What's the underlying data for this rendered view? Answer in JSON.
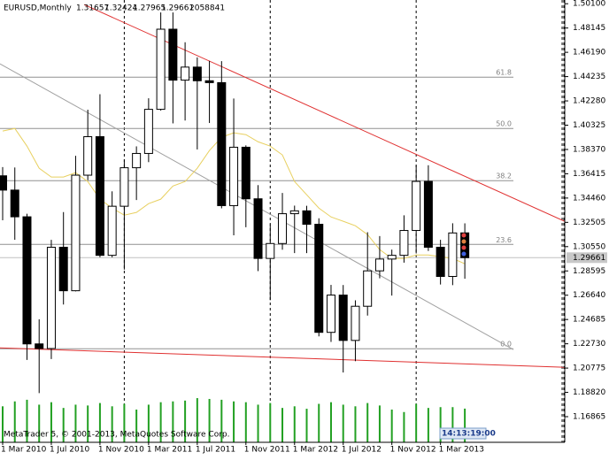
{
  "chart_data": {
    "type": "candlestick",
    "symbol": "EURUSD,Monthly",
    "volume": 2058841,
    "footer": "MetaTrader 5, © 2001-2013, MetaQuotes Software Corp.",
    "countdown": "14:13:19:00",
    "categories": [
      "1 Mar 2010",
      null,
      null,
      null,
      "1 Jul 2010",
      null,
      null,
      null,
      "1 Nov 2010",
      null,
      null,
      null,
      "1 Mar 2011",
      null,
      null,
      null,
      "1 Jul 2011",
      null,
      null,
      null,
      "1 Nov 2011",
      null,
      null,
      null,
      "1 Mar 2012",
      null,
      null,
      null,
      "1 Jul 2012",
      null,
      null,
      null,
      "1 Nov 2012",
      null,
      null,
      null,
      "1 Mar 2013",
      null,
      null
    ],
    "open": [
      1.3625,
      1.351,
      1.3295,
      1.2272,
      1.2235,
      1.305,
      1.27,
      1.363,
      1.394,
      1.2985,
      1.338,
      1.369,
      1.3805,
      1.416,
      1.4805,
      1.4395,
      1.45,
      1.439,
      1.4375,
      1.3385,
      1.3855,
      1.344,
      1.296,
      1.308,
      1.332,
      1.3343,
      1.3235,
      1.2365,
      1.2665,
      1.23,
      1.2575,
      1.286,
      1.2955,
      1.2985,
      1.3185,
      1.358,
      1.305,
      1.2815,
      1.31657
    ],
    "high": [
      1.3695,
      1.3692,
      1.332,
      1.247,
      1.311,
      1.3333,
      1.3786,
      1.4157,
      1.4282,
      1.35,
      1.3755,
      1.3862,
      1.4249,
      1.494,
      1.494,
      1.47,
      1.4578,
      1.455,
      1.4548,
      1.4247,
      1.387,
      1.355,
      1.3235,
      1.3487,
      1.3385,
      1.3384,
      1.3283,
      1.2747,
      1.2746,
      1.2623,
      1.3171,
      1.314,
      1.3031,
      1.3307,
      1.3711,
      1.371,
      1.311,
      1.3243,
      1.32424
    ],
    "low": [
      1.3267,
      1.311,
      1.2143,
      1.1876,
      1.215,
      1.2589,
      1.2695,
      1.359,
      1.297,
      1.2969,
      1.287,
      1.343,
      1.3735,
      1.415,
      1.4047,
      1.407,
      1.3837,
      1.405,
      1.3363,
      1.3146,
      1.3211,
      1.2858,
      1.2624,
      1.303,
      1.3003,
      1.3003,
      1.2333,
      1.2288,
      1.2042,
      1.2133,
      1.25,
      1.28,
      1.2661,
      1.2926,
      1.3,
      1.302,
      1.275,
      1.2745,
      1.27965
    ],
    "close": [
      1.351,
      1.3295,
      1.2272,
      1.2235,
      1.305,
      1.27,
      1.363,
      1.394,
      1.2985,
      1.338,
      1.369,
      1.3805,
      1.416,
      1.4805,
      1.4395,
      1.45,
      1.439,
      1.4375,
      1.3385,
      1.3855,
      1.344,
      1.296,
      1.308,
      1.332,
      1.3343,
      1.3235,
      1.2365,
      1.2665,
      1.23,
      1.2575,
      1.286,
      1.2955,
      1.2985,
      1.3185,
      1.358,
      1.305,
      1.2815,
      1.3165,
      1.29661
    ],
    "volumes": [
      2200000,
      2500000,
      2600000,
      2300000,
      2450000,
      2100000,
      2300000,
      2250000,
      2400000,
      2200000,
      2350000,
      2000000,
      2300000,
      2450000,
      2500000,
      2550000,
      2700000,
      2650000,
      2600000,
      2500000,
      2450000,
      2300000,
      2400000,
      2100000,
      2200000,
      2050000,
      2350000,
      2450000,
      2300000,
      2200000,
      2400000,
      2250000,
      2000000,
      1850000,
      2350000,
      2100000,
      2150000,
      2150000,
      2058841
    ],
    "moving_average": {
      "color": "#e8d060",
      "values": [
        1.3985,
        1.4006,
        1.3864,
        1.3686,
        1.3615,
        1.3615,
        1.365,
        1.3579,
        1.3437,
        1.3365,
        1.3308,
        1.333,
        1.3401,
        1.3437,
        1.3543,
        1.3579,
        1.3686,
        1.3828,
        1.3935,
        1.3971,
        1.3956,
        1.3899,
        1.3864,
        1.3793,
        1.3579,
        1.3472,
        1.3365,
        1.3294,
        1.3259,
        1.3223,
        1.3152,
        1.3031,
        1.296,
        1.296,
        1.2988,
        1.2988,
        1.2974,
        1.296,
        1.2917
      ]
    },
    "trendlines": [
      {
        "color": "#e03030",
        "x": [
          6.7,
          46.2
        ],
        "y": [
          1.5003,
          1.3259
        ]
      },
      {
        "color": "#e03030",
        "x": [
          -0.22,
          46.2
        ],
        "y": [
          1.224,
          1.2084
        ]
      },
      {
        "color": "#a0a0a0",
        "x": [
          -0.22,
          42.0
        ],
        "y": [
          1.4526,
          1.2226
        ]
      }
    ],
    "fibonacci": [
      {
        "label": "61.8",
        "price": 1.4419
      },
      {
        "label": "50.0",
        "price": 1.4006
      },
      {
        "label": "38.2",
        "price": 1.3586
      },
      {
        "label": "23.6",
        "price": 1.3073
      },
      {
        "label": "0.0",
        "price": 1.2233
      }
    ],
    "ylim": [
      1.148,
      1.504
    ],
    "yticks": [
      {
        "value": 1.501,
        "label": "1.50100"
      },
      1.48145,
      {
        "value": 1.4619,
        "label": "1.46190"
      },
      1.44235,
      {
        "value": 1.4228,
        "label": "1.42280"
      },
      1.40325,
      {
        "value": 1.3837,
        "label": "1.38370"
      },
      1.36415,
      {
        "value": 1.3446,
        "label": "1.34460"
      },
      1.32505,
      {
        "value": 1.3055,
        "label": "1.30550"
      },
      1.28595,
      {
        "value": 1.2664,
        "label": "1.26640"
      },
      1.24685,
      {
        "value": 1.2273,
        "label": "1.22730"
      },
      1.20775,
      {
        "value": 1.1882,
        "label": "1.18820"
      },
      1.16865
    ]
  }
}
